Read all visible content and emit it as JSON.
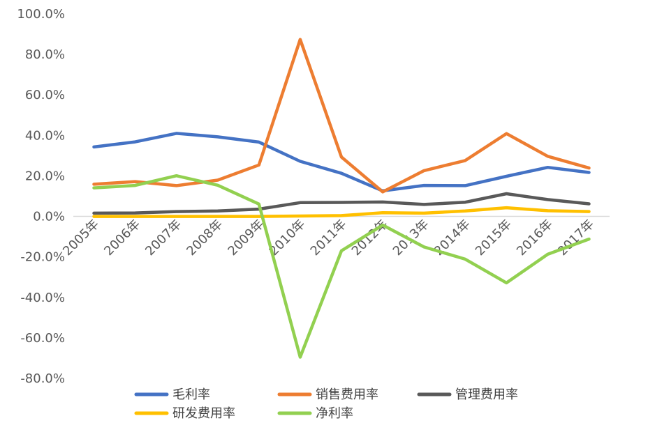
{
  "chart_data": {
    "type": "line",
    "title": "",
    "xlabel": "",
    "ylabel": "",
    "categories": [
      "2005年",
      "2006年",
      "2007年",
      "2008年",
      "2009年",
      "2010年",
      "2011年",
      "2012年",
      "2013年",
      "2014年",
      "2015年",
      "2016年",
      "2017年"
    ],
    "ylim": [
      -80,
      100
    ],
    "ytick_labels": [
      "100.0%",
      "80.0%",
      "60.0%",
      "40.0%",
      "20.0%",
      "0.0%",
      "-20.0%",
      "-40.0%",
      "-60.0%",
      "-80.0%"
    ],
    "y_unit": "%",
    "grid": false,
    "legend_position": "bottom",
    "series": [
      {
        "name": "毛利率",
        "color": "#4472C4",
        "values": [
          34.3,
          36.8,
          41.0,
          39.3,
          36.7,
          27.2,
          21.3,
          12.6,
          15.3,
          15.2,
          19.8,
          24.2,
          21.7
        ]
      },
      {
        "name": "销售费用率",
        "color": "#ED7D31",
        "values": [
          15.9,
          17.2,
          15.2,
          17.9,
          25.4,
          87.4,
          29.3,
          12.1,
          22.6,
          27.6,
          40.9,
          29.7,
          23.9
        ]
      },
      {
        "name": "管理费用率",
        "color": "#595959",
        "values": [
          1.6,
          1.7,
          2.4,
          2.7,
          3.6,
          6.8,
          6.9,
          7.1,
          5.9,
          7.0,
          11.2,
          8.3,
          6.2
        ]
      },
      {
        "name": "研发费用率",
        "color": "#FFC000",
        "values": [
          0.0,
          0.0,
          0.0,
          0.0,
          0.0,
          0.2,
          0.4,
          1.8,
          1.6,
          2.7,
          4.3,
          2.8,
          2.4
        ]
      },
      {
        "name": "净利率",
        "color": "#92D050",
        "values": [
          14.1,
          15.3,
          20.1,
          15.4,
          6.1,
          -69.5,
          -17.0,
          -4.3,
          -15.1,
          -21.1,
          -32.8,
          -18.7,
          -11.2
        ]
      }
    ]
  }
}
